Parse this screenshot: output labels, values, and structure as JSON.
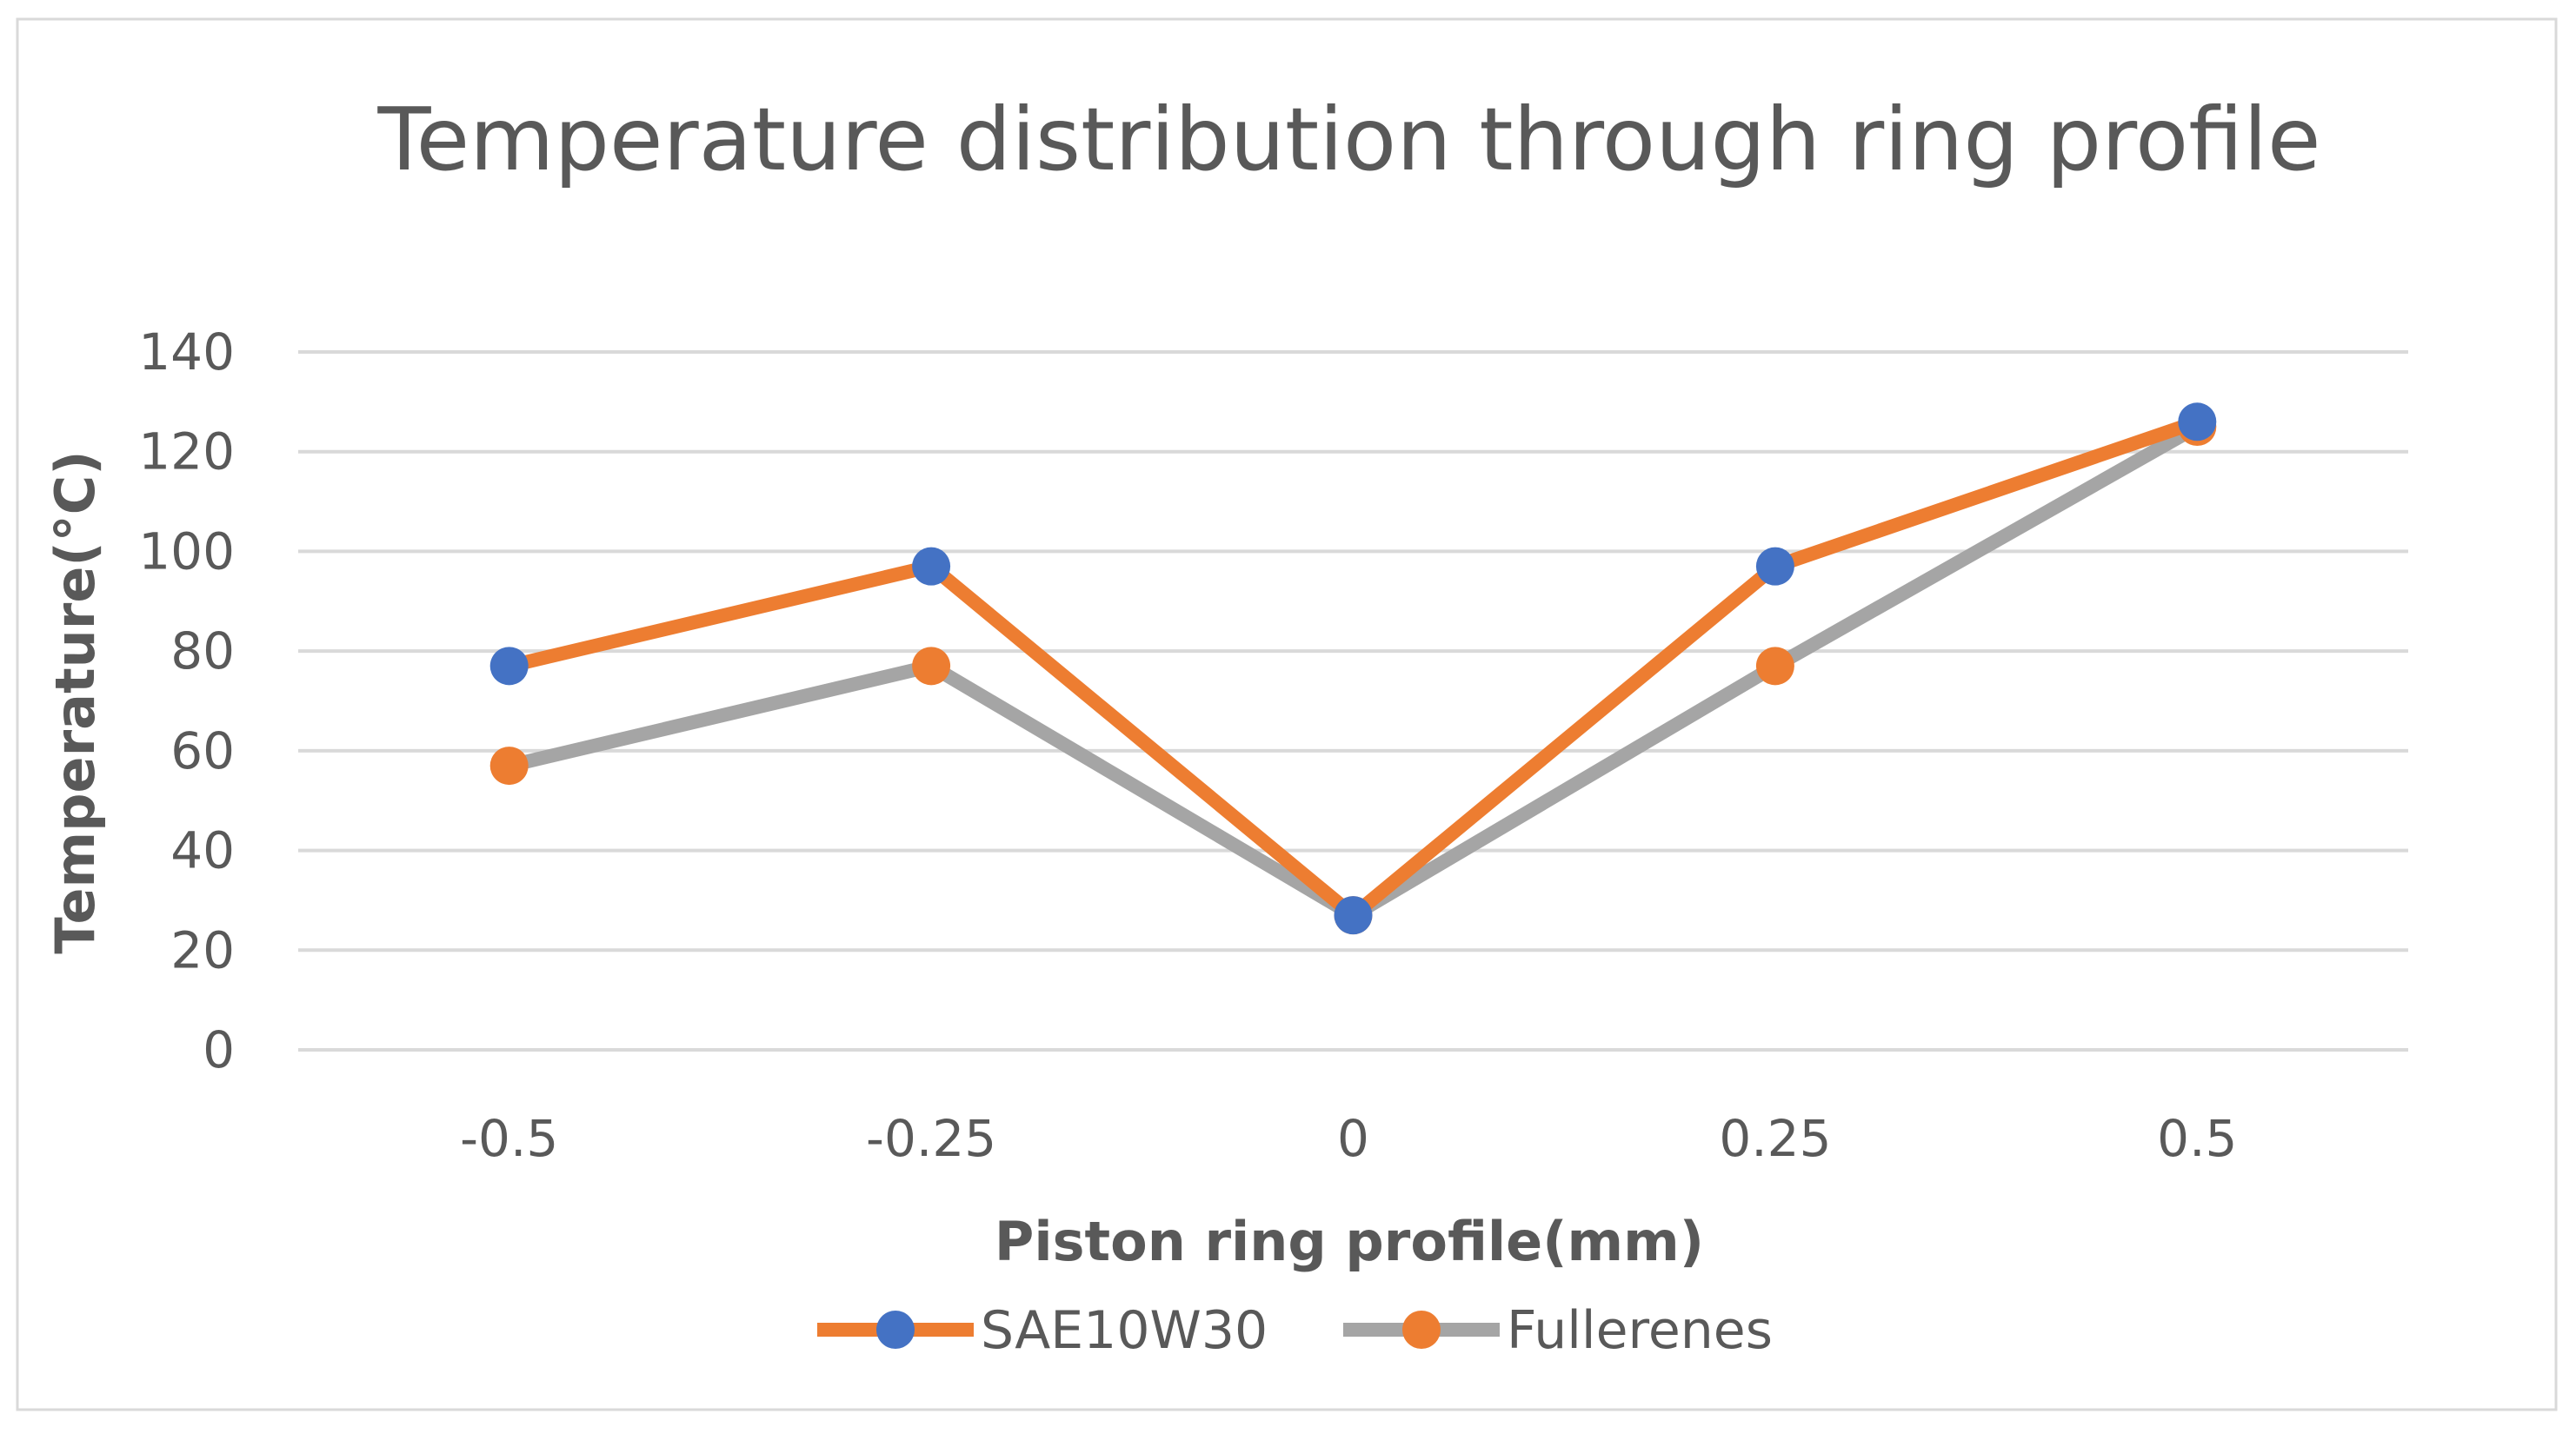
{
  "chart_data": {
    "type": "line",
    "title": "Temperature distribution through ring profile",
    "xlabel": "Piston ring profile(mm)",
    "ylabel": "Temperature(°C)",
    "categories": [
      "-0.5",
      "-0.25",
      "0",
      "0.25",
      "0.5"
    ],
    "ylim": [
      0,
      140
    ],
    "yticks": [
      "0",
      "20",
      "40",
      "60",
      "80",
      "100",
      "120",
      "140"
    ],
    "grid": true,
    "legend_position": "bottom",
    "series": [
      {
        "name": "SAE10W30",
        "values": [
          77,
          97,
          27,
          97,
          126
        ],
        "line_color": "#ED7D31",
        "marker_color": "#4472C4"
      },
      {
        "name": "Fullerenes",
        "values": [
          57,
          77,
          27,
          77,
          125
        ],
        "line_color": "#A5A5A5",
        "marker_color": "#ED7D31"
      }
    ]
  }
}
